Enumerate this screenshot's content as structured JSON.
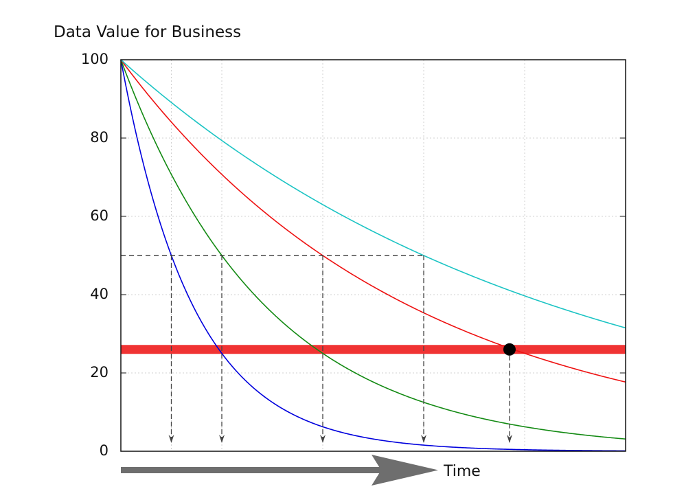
{
  "chart_data": {
    "type": "line",
    "title": "",
    "ylabel": "Data Value for Business",
    "xlabel": "Time",
    "ylim": [
      0,
      100
    ],
    "xlim": [
      0,
      100
    ],
    "grid": true,
    "y_ticks": [
      0,
      20,
      40,
      60,
      80,
      100
    ],
    "y_tick_labels": [
      "0",
      "20",
      "40",
      "60",
      "80",
      "100"
    ],
    "x_grid_lines": [
      10,
      20,
      40,
      60,
      80
    ],
    "series": [
      {
        "color": "#0000dd",
        "half_life": 10,
        "shape": "exponential-decay",
        "start": 100
      },
      {
        "color": "#138a13",
        "half_life": 20,
        "shape": "exponential-decay",
        "start": 100
      },
      {
        "color": "#ee1111",
        "half_life": 40,
        "shape": "exponential-decay",
        "start": 100
      },
      {
        "color": "#1cc4c4",
        "half_life": 60,
        "shape": "exponential-decay",
        "start": 100
      }
    ],
    "half_value_line": {
      "y": 50,
      "x_end": 60
    },
    "half_value_drops": [
      10,
      20,
      40,
      60
    ],
    "threshold": {
      "y": 26,
      "color": "#f03333"
    },
    "threshold_drop": {
      "x": 77,
      "y": 26
    },
    "time_arrow_color": "#6e6e6e"
  }
}
